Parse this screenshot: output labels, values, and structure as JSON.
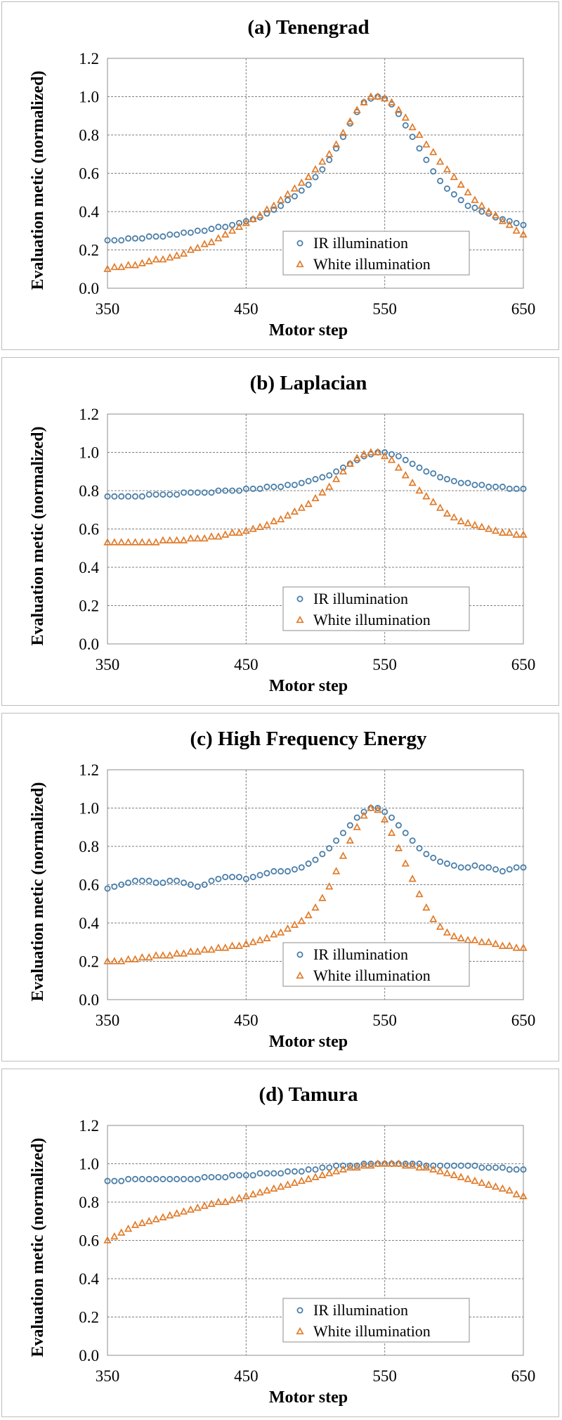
{
  "colors": {
    "ir": "#4a7ea8",
    "white": "#e07b2a",
    "grid": "#7f7f7f"
  },
  "chart_data": [
    {
      "type": "scatter",
      "title": "(a) Tenengrad",
      "xlabel": "Motor step",
      "ylabel": "Evaluation metic (normalized)",
      "xlim": [
        350,
        650
      ],
      "ylim": [
        0,
        1.2
      ],
      "xticks": [
        "350",
        "450",
        "550",
        "650"
      ],
      "yticks": [
        "0.0",
        "0.2",
        "0.4",
        "0.6",
        "0.8",
        "1.0",
        "1.2"
      ],
      "grid": "dashed",
      "legend_position": "bottom-right",
      "x": [
        350,
        355,
        360,
        365,
        370,
        375,
        380,
        385,
        390,
        395,
        400,
        405,
        410,
        415,
        420,
        425,
        430,
        435,
        440,
        445,
        450,
        455,
        460,
        465,
        470,
        475,
        480,
        485,
        490,
        495,
        500,
        505,
        510,
        515,
        520,
        525,
        530,
        535,
        540,
        545,
        550,
        555,
        560,
        565,
        570,
        575,
        580,
        585,
        590,
        595,
        600,
        605,
        610,
        615,
        620,
        625,
        630,
        635,
        640,
        645,
        650
      ],
      "series": [
        {
          "name": "IR illumination",
          "values": [
            0.25,
            0.25,
            0.25,
            0.26,
            0.26,
            0.26,
            0.27,
            0.27,
            0.27,
            0.28,
            0.28,
            0.29,
            0.29,
            0.3,
            0.3,
            0.31,
            0.32,
            0.32,
            0.33,
            0.34,
            0.35,
            0.36,
            0.37,
            0.39,
            0.41,
            0.43,
            0.46,
            0.48,
            0.51,
            0.54,
            0.58,
            0.62,
            0.67,
            0.73,
            0.79,
            0.86,
            0.92,
            0.97,
            0.99,
            1.0,
            0.99,
            0.96,
            0.91,
            0.85,
            0.79,
            0.73,
            0.67,
            0.61,
            0.56,
            0.52,
            0.49,
            0.46,
            0.43,
            0.42,
            0.4,
            0.39,
            0.37,
            0.36,
            0.35,
            0.34,
            0.33
          ]
        },
        {
          "name": "White illumination",
          "values": [
            0.1,
            0.11,
            0.11,
            0.12,
            0.12,
            0.13,
            0.14,
            0.15,
            0.15,
            0.16,
            0.17,
            0.18,
            0.2,
            0.21,
            0.23,
            0.24,
            0.26,
            0.28,
            0.3,
            0.32,
            0.34,
            0.36,
            0.38,
            0.41,
            0.43,
            0.46,
            0.49,
            0.52,
            0.55,
            0.58,
            0.62,
            0.66,
            0.7,
            0.75,
            0.81,
            0.87,
            0.93,
            0.97,
            1.0,
            1.0,
            0.99,
            0.97,
            0.93,
            0.89,
            0.84,
            0.8,
            0.75,
            0.71,
            0.66,
            0.62,
            0.58,
            0.54,
            0.5,
            0.46,
            0.43,
            0.4,
            0.38,
            0.35,
            0.33,
            0.3,
            0.28
          ]
        }
      ]
    },
    {
      "type": "scatter",
      "title": "(b) Laplacian",
      "xlabel": "Motor step",
      "ylabel": "Evaluation metic (normalized)",
      "xlim": [
        350,
        650
      ],
      "ylim": [
        0,
        1.2
      ],
      "xticks": [
        "350",
        "450",
        "550",
        "650"
      ],
      "yticks": [
        "0.0",
        "0.2",
        "0.4",
        "0.6",
        "0.8",
        "1.0",
        "1.2"
      ],
      "grid": "dashed",
      "legend_position": "bottom-right",
      "x": [
        350,
        355,
        360,
        365,
        370,
        375,
        380,
        385,
        390,
        395,
        400,
        405,
        410,
        415,
        420,
        425,
        430,
        435,
        440,
        445,
        450,
        455,
        460,
        465,
        470,
        475,
        480,
        485,
        490,
        495,
        500,
        505,
        510,
        515,
        520,
        525,
        530,
        535,
        540,
        545,
        550,
        555,
        560,
        565,
        570,
        575,
        580,
        585,
        590,
        595,
        600,
        605,
        610,
        615,
        620,
        625,
        630,
        635,
        640,
        645,
        650
      ],
      "series": [
        {
          "name": "IR illumination",
          "values": [
            0.77,
            0.77,
            0.77,
            0.77,
            0.77,
            0.77,
            0.78,
            0.78,
            0.78,
            0.78,
            0.78,
            0.79,
            0.79,
            0.79,
            0.79,
            0.79,
            0.8,
            0.8,
            0.8,
            0.8,
            0.81,
            0.81,
            0.81,
            0.82,
            0.82,
            0.82,
            0.83,
            0.83,
            0.84,
            0.85,
            0.86,
            0.87,
            0.88,
            0.9,
            0.92,
            0.94,
            0.96,
            0.98,
            0.99,
            1.0,
            1.0,
            0.99,
            0.98,
            0.96,
            0.94,
            0.92,
            0.9,
            0.89,
            0.87,
            0.86,
            0.85,
            0.84,
            0.84,
            0.83,
            0.83,
            0.82,
            0.82,
            0.82,
            0.81,
            0.81,
            0.81
          ]
        },
        {
          "name": "White illumination",
          "values": [
            0.53,
            0.53,
            0.53,
            0.53,
            0.53,
            0.53,
            0.53,
            0.53,
            0.54,
            0.54,
            0.54,
            0.54,
            0.55,
            0.55,
            0.55,
            0.56,
            0.56,
            0.57,
            0.58,
            0.58,
            0.59,
            0.6,
            0.61,
            0.62,
            0.64,
            0.65,
            0.67,
            0.69,
            0.71,
            0.73,
            0.76,
            0.79,
            0.82,
            0.86,
            0.9,
            0.94,
            0.97,
            0.99,
            1.0,
            1.0,
            0.98,
            0.96,
            0.92,
            0.88,
            0.84,
            0.8,
            0.77,
            0.74,
            0.71,
            0.68,
            0.66,
            0.64,
            0.63,
            0.62,
            0.61,
            0.6,
            0.59,
            0.58,
            0.58,
            0.57,
            0.57
          ]
        }
      ]
    },
    {
      "type": "scatter",
      "title": "(c) High Frequency Energy",
      "xlabel": "Motor step",
      "ylabel": "Evaluation metic (normalized)",
      "xlim": [
        350,
        650
      ],
      "ylim": [
        0,
        1.2
      ],
      "xticks": [
        "350",
        "450",
        "550",
        "650"
      ],
      "yticks": [
        "0.0",
        "0.2",
        "0.4",
        "0.6",
        "0.8",
        "1.0",
        "1.2"
      ],
      "grid": "dashed",
      "legend_position": "bottom-right",
      "x": [
        350,
        355,
        360,
        365,
        370,
        375,
        380,
        385,
        390,
        395,
        400,
        405,
        410,
        415,
        420,
        425,
        430,
        435,
        440,
        445,
        450,
        455,
        460,
        465,
        470,
        475,
        480,
        485,
        490,
        495,
        500,
        505,
        510,
        515,
        520,
        525,
        530,
        535,
        540,
        545,
        550,
        555,
        560,
        565,
        570,
        575,
        580,
        585,
        590,
        595,
        600,
        605,
        610,
        615,
        620,
        625,
        630,
        635,
        640,
        645,
        650
      ],
      "series": [
        {
          "name": "IR illumination",
          "values": [
            0.58,
            0.59,
            0.6,
            0.61,
            0.62,
            0.62,
            0.62,
            0.61,
            0.61,
            0.62,
            0.62,
            0.61,
            0.6,
            0.59,
            0.6,
            0.62,
            0.63,
            0.64,
            0.64,
            0.64,
            0.63,
            0.64,
            0.65,
            0.66,
            0.67,
            0.67,
            0.67,
            0.68,
            0.69,
            0.71,
            0.73,
            0.76,
            0.79,
            0.83,
            0.87,
            0.91,
            0.95,
            0.98,
            1.0,
            1.0,
            0.98,
            0.95,
            0.91,
            0.87,
            0.83,
            0.79,
            0.76,
            0.74,
            0.72,
            0.71,
            0.7,
            0.69,
            0.69,
            0.7,
            0.69,
            0.69,
            0.68,
            0.67,
            0.68,
            0.69,
            0.69
          ]
        },
        {
          "name": "White illumination",
          "values": [
            0.2,
            0.2,
            0.2,
            0.21,
            0.21,
            0.22,
            0.22,
            0.23,
            0.23,
            0.23,
            0.24,
            0.24,
            0.25,
            0.25,
            0.26,
            0.26,
            0.27,
            0.27,
            0.28,
            0.28,
            0.29,
            0.3,
            0.31,
            0.32,
            0.34,
            0.35,
            0.37,
            0.39,
            0.41,
            0.44,
            0.48,
            0.53,
            0.59,
            0.67,
            0.75,
            0.83,
            0.9,
            0.96,
            1.0,
            0.99,
            0.94,
            0.87,
            0.79,
            0.71,
            0.63,
            0.55,
            0.48,
            0.42,
            0.38,
            0.35,
            0.33,
            0.32,
            0.31,
            0.31,
            0.3,
            0.3,
            0.29,
            0.28,
            0.28,
            0.27,
            0.27
          ]
        }
      ]
    },
    {
      "type": "scatter",
      "title": "(d) Tamura",
      "xlabel": "Motor step",
      "ylabel": "Evaluation metic (normalized)",
      "xlim": [
        350,
        650
      ],
      "ylim": [
        0,
        1.2
      ],
      "xticks": [
        "350",
        "450",
        "550",
        "650"
      ],
      "yticks": [
        "0.0",
        "0.2",
        "0.4",
        "0.6",
        "0.8",
        "1.0",
        "1.2"
      ],
      "grid": "dashed",
      "legend_position": "bottom-right",
      "x": [
        350,
        355,
        360,
        365,
        370,
        375,
        380,
        385,
        390,
        395,
        400,
        405,
        410,
        415,
        420,
        425,
        430,
        435,
        440,
        445,
        450,
        455,
        460,
        465,
        470,
        475,
        480,
        485,
        490,
        495,
        500,
        505,
        510,
        515,
        520,
        525,
        530,
        535,
        540,
        545,
        550,
        555,
        560,
        565,
        570,
        575,
        580,
        585,
        590,
        595,
        600,
        605,
        610,
        615,
        620,
        625,
        630,
        635,
        640,
        645,
        650
      ],
      "series": [
        {
          "name": "IR illumination",
          "values": [
            0.91,
            0.91,
            0.91,
            0.92,
            0.92,
            0.92,
            0.92,
            0.92,
            0.92,
            0.92,
            0.92,
            0.92,
            0.92,
            0.92,
            0.93,
            0.93,
            0.93,
            0.93,
            0.94,
            0.94,
            0.94,
            0.94,
            0.95,
            0.95,
            0.95,
            0.95,
            0.96,
            0.96,
            0.96,
            0.97,
            0.97,
            0.98,
            0.98,
            0.99,
            0.99,
            0.99,
            0.99,
            1.0,
            1.0,
            1.0,
            1.0,
            1.0,
            1.0,
            1.0,
            1.0,
            1.0,
            0.99,
            0.99,
            0.99,
            0.99,
            0.99,
            0.99,
            0.99,
            0.99,
            0.98,
            0.98,
            0.98,
            0.98,
            0.97,
            0.97,
            0.97
          ]
        },
        {
          "name": "White illumination",
          "values": [
            0.6,
            0.62,
            0.64,
            0.66,
            0.68,
            0.69,
            0.7,
            0.71,
            0.72,
            0.73,
            0.74,
            0.75,
            0.76,
            0.77,
            0.78,
            0.79,
            0.8,
            0.8,
            0.81,
            0.82,
            0.83,
            0.84,
            0.85,
            0.86,
            0.87,
            0.88,
            0.89,
            0.9,
            0.91,
            0.92,
            0.93,
            0.94,
            0.95,
            0.96,
            0.97,
            0.98,
            0.98,
            0.99,
            0.99,
            1.0,
            1.0,
            1.0,
            1.0,
            0.99,
            0.99,
            0.98,
            0.98,
            0.97,
            0.96,
            0.95,
            0.94,
            0.93,
            0.92,
            0.91,
            0.9,
            0.89,
            0.88,
            0.87,
            0.86,
            0.84,
            0.83
          ]
        }
      ]
    }
  ]
}
